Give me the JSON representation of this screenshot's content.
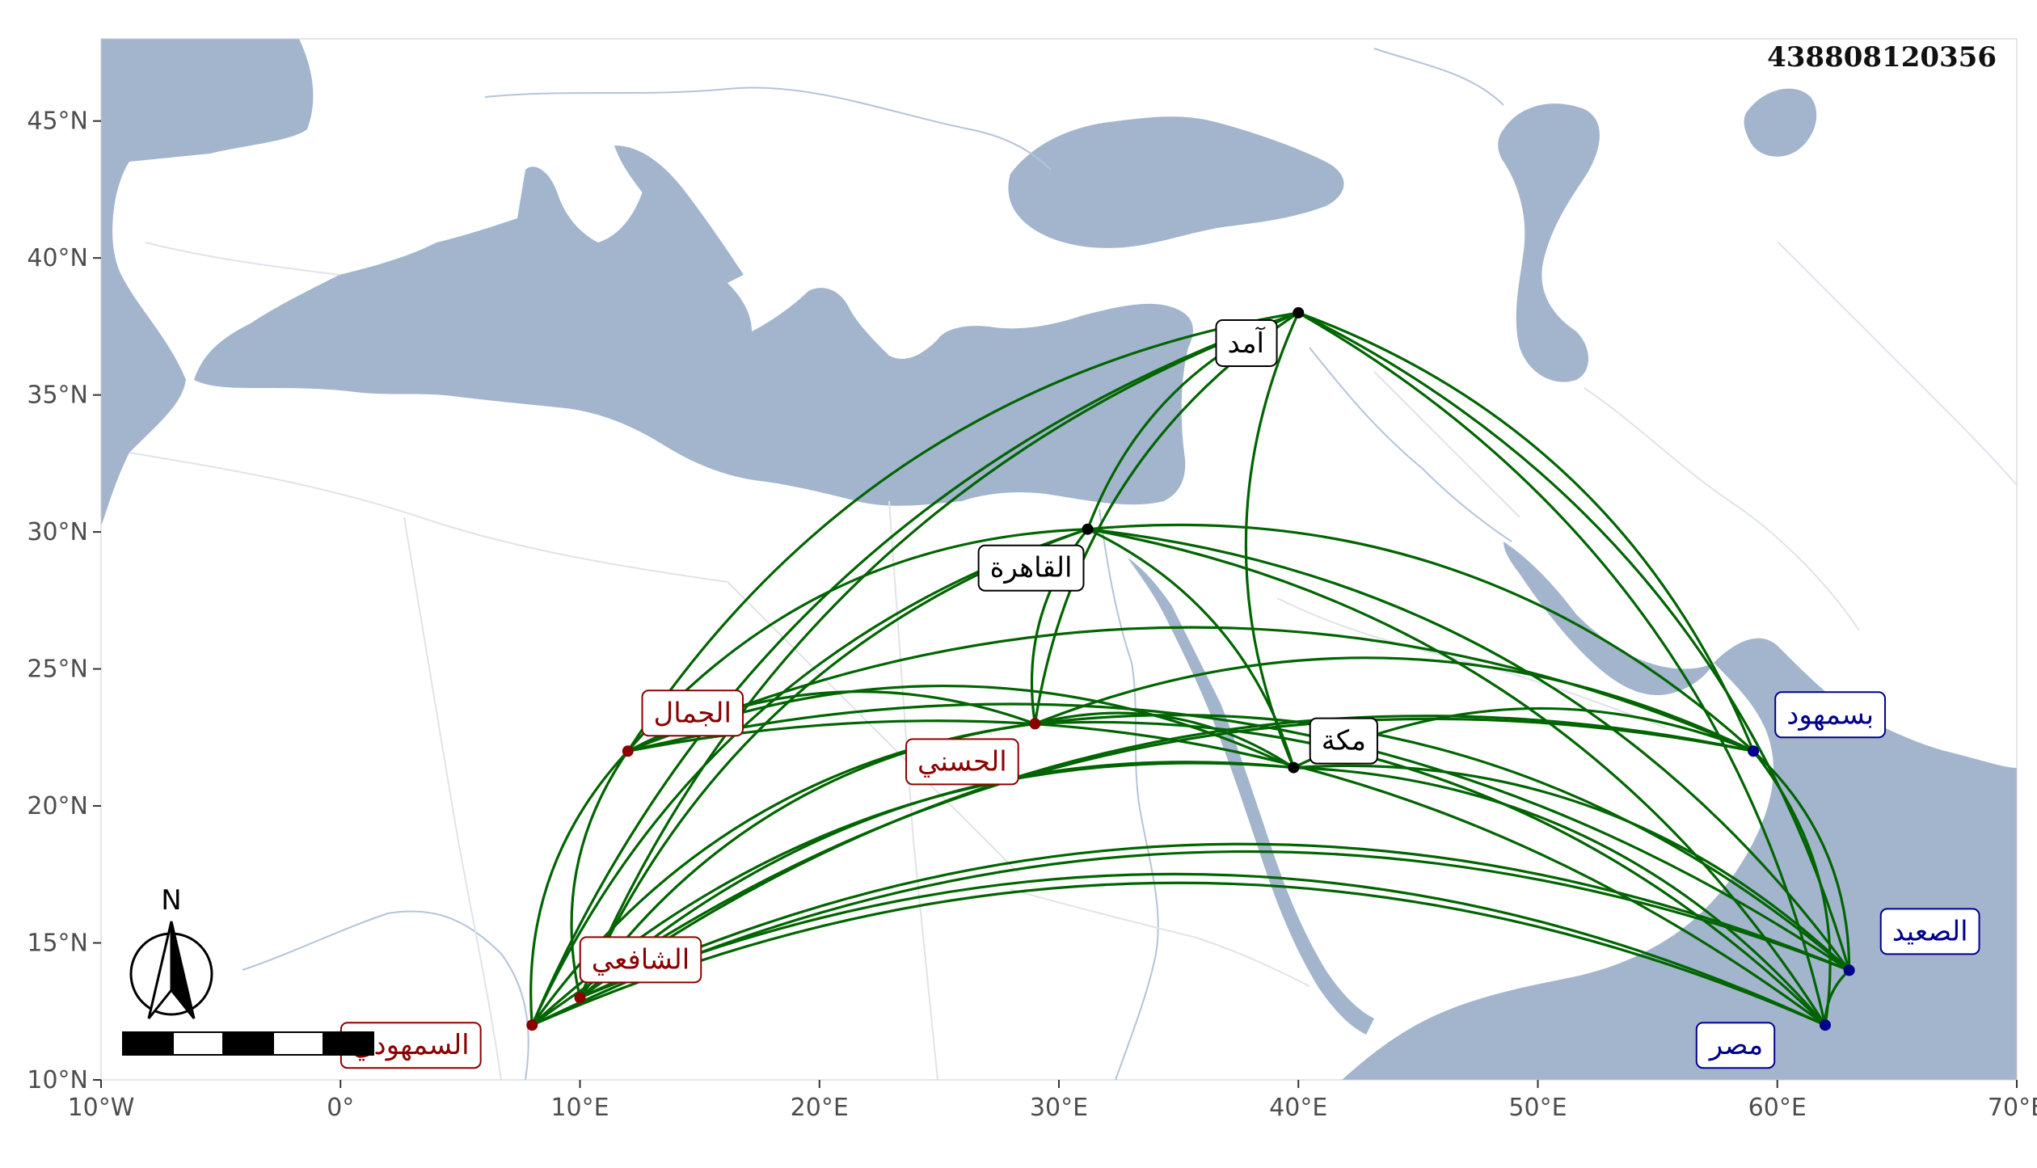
{
  "map": {
    "id_code": "438808120356",
    "colors": {
      "background": "#ffffff",
      "water": "#a3b5cd",
      "borders": "#dfe3ea",
      "rivers": "#b4c4d8",
      "routes": "#006400",
      "west_group": "#8b0000",
      "hub_group": "#000000",
      "east_group": "#00008b"
    },
    "extent": {
      "lon": [
        -10,
        70
      ],
      "lat": [
        10,
        48
      ]
    },
    "x_ticks": [
      {
        "value": -10,
        "label": "10°W"
      },
      {
        "value": 0,
        "label": "0°"
      },
      {
        "value": 10,
        "label": "10°E"
      },
      {
        "value": 20,
        "label": "20°E"
      },
      {
        "value": 30,
        "label": "30°E"
      },
      {
        "value": 40,
        "label": "40°E"
      },
      {
        "value": 50,
        "label": "50°E"
      },
      {
        "value": 60,
        "label": "60°E"
      },
      {
        "value": 70,
        "label": "70°E"
      }
    ],
    "y_ticks": [
      {
        "value": 10,
        "label": "10°N"
      },
      {
        "value": 15,
        "label": "15°N"
      },
      {
        "value": 20,
        "label": "20°N"
      },
      {
        "value": 25,
        "label": "25°N"
      },
      {
        "value": 30,
        "label": "30°N"
      },
      {
        "value": 35,
        "label": "35°N"
      },
      {
        "value": 40,
        "label": "40°N"
      },
      {
        "value": 45,
        "label": "45°N"
      }
    ],
    "north_arrow": {
      "letter": "N",
      "icon": "north-arrow-icon"
    },
    "scale_bar": {
      "segments": 5
    },
    "places": [
      {
        "key": "samhudi",
        "name": "السمهودي",
        "lon": 8,
        "lat": 12,
        "group": "west"
      },
      {
        "key": "shafii",
        "name": "الشافعي",
        "lon": 10,
        "lat": 13,
        "group": "west"
      },
      {
        "key": "jamal",
        "name": "الجمال",
        "lon": 12,
        "lat": 22,
        "group": "west"
      },
      {
        "key": "hasani",
        "name": "الحسني",
        "lon": 29,
        "lat": 23,
        "group": "west"
      },
      {
        "key": "amad",
        "name": "آمد",
        "lon": 40,
        "lat": 38,
        "group": "hub"
      },
      {
        "key": "cairo",
        "name": "القاهرة",
        "lon": 31.2,
        "lat": 30.1,
        "group": "hub"
      },
      {
        "key": "mecca",
        "name": "مكة",
        "lon": 39.8,
        "lat": 21.4,
        "group": "hub"
      },
      {
        "key": "basmahud",
        "name": "بسمهود",
        "lon": 59,
        "lat": 22,
        "group": "east"
      },
      {
        "key": "saeed",
        "name": "الصعيد",
        "lon": 63,
        "lat": 14,
        "group": "east"
      },
      {
        "key": "misr",
        "name": "مصر",
        "lon": 62,
        "lat": 12,
        "group": "east"
      }
    ],
    "routes": [
      [
        "samhudi",
        "amad"
      ],
      [
        "samhudi",
        "cairo"
      ],
      [
        "samhudi",
        "mecca"
      ],
      [
        "samhudi",
        "basmahud"
      ],
      [
        "samhudi",
        "saeed"
      ],
      [
        "samhudi",
        "misr"
      ],
      [
        "shafii",
        "amad"
      ],
      [
        "shafii",
        "cairo"
      ],
      [
        "shafii",
        "mecca"
      ],
      [
        "shafii",
        "basmahud"
      ],
      [
        "shafii",
        "saeed"
      ],
      [
        "shafii",
        "misr"
      ],
      [
        "jamal",
        "amad"
      ],
      [
        "jamal",
        "cairo"
      ],
      [
        "jamal",
        "mecca"
      ],
      [
        "jamal",
        "basmahud"
      ],
      [
        "jamal",
        "saeed"
      ],
      [
        "jamal",
        "misr"
      ],
      [
        "hasani",
        "amad"
      ],
      [
        "hasani",
        "cairo"
      ],
      [
        "hasani",
        "mecca"
      ],
      [
        "hasani",
        "basmahud"
      ],
      [
        "hasani",
        "saeed"
      ],
      [
        "hasani",
        "misr"
      ],
      [
        "amad",
        "basmahud"
      ],
      [
        "amad",
        "saeed"
      ],
      [
        "amad",
        "misr"
      ],
      [
        "cairo",
        "basmahud"
      ],
      [
        "cairo",
        "saeed"
      ],
      [
        "cairo",
        "misr"
      ],
      [
        "mecca",
        "basmahud"
      ],
      [
        "mecca",
        "saeed"
      ],
      [
        "mecca",
        "misr"
      ],
      [
        "samhudi",
        "jamal"
      ],
      [
        "shafii",
        "jamal"
      ],
      [
        "samhudi",
        "hasani"
      ],
      [
        "shafii",
        "hasani"
      ],
      [
        "jamal",
        "hasani"
      ],
      [
        "amad",
        "cairo"
      ],
      [
        "amad",
        "mecca"
      ],
      [
        "cairo",
        "mecca"
      ],
      [
        "basmahud",
        "saeed"
      ],
      [
        "basmahud",
        "misr"
      ],
      [
        "saeed",
        "misr"
      ]
    ]
  }
}
